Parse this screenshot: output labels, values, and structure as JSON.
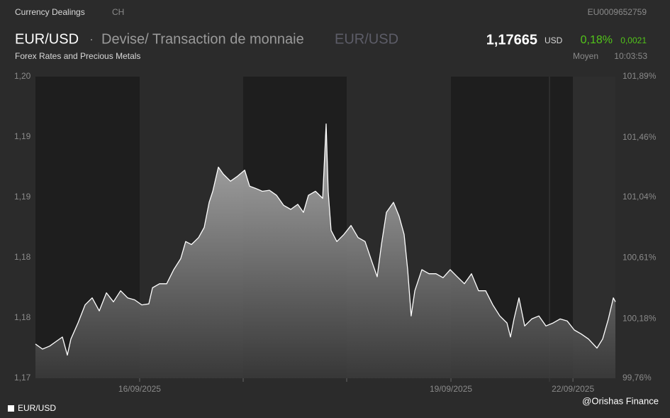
{
  "header": {
    "section": "Currency Dealings",
    "country": "CH",
    "isin": "EU0009652759",
    "symbol": "EUR/USD",
    "separator": "·",
    "description": "Devise/ Transaction de monnaie",
    "symbol_alt": "EUR/USD",
    "price": "1,17665",
    "currency": "USD",
    "change_pct": "0,18%",
    "change_abs": "0,0021",
    "subtitle": "Forex Rates and Precious Metals",
    "price_type": "Moyen",
    "time": "10:03:53"
  },
  "chart_data": {
    "type": "area",
    "x": [
      0,
      0.068,
      0.137,
      0.205,
      0.26,
      0.308,
      0.342,
      0.411,
      0.479,
      0.548,
      0.616,
      0.685,
      0.753,
      0.822,
      0.89,
      0.958,
      1.027,
      1.095,
      1.13,
      1.198,
      1.267,
      1.335,
      1.403,
      1.451,
      1.506,
      1.575,
      1.629,
      1.677,
      1.712,
      1.766,
      1.814,
      1.883,
      1.951,
      2.02,
      2.068,
      2.122,
      2.191,
      2.259,
      2.328,
      2.396,
      2.465,
      2.533,
      2.588,
      2.636,
      2.704,
      2.773,
      2.807,
      2.827,
      2.855,
      2.91,
      2.978,
      3.047,
      3.115,
      3.183,
      3.252,
      3.3,
      3.341,
      3.389,
      3.457,
      3.512,
      3.56,
      3.594,
      3.628,
      3.663,
      3.731,
      3.8,
      3.868,
      3.936,
      4.005,
      4.073,
      4.142,
      4.21,
      4.279,
      4.347,
      4.416,
      4.484,
      4.553,
      4.587,
      4.621,
      4.669,
      4.724,
      4.792,
      4.861,
      4.929,
      4.998,
      5.066,
      5.134,
      5.203,
      5.271,
      5.34,
      5.422,
      5.477,
      5.532,
      5.58,
      5.6
    ],
    "series": [
      {
        "name": "EUR/USD",
        "color": "#ffffff",
        "values": [
          1.1734,
          1.1729,
          1.1732,
          1.1737,
          1.1741,
          1.1723,
          1.1739,
          1.1755,
          1.1773,
          1.178,
          1.1767,
          1.1785,
          1.1776,
          1.1787,
          1.178,
          1.1778,
          1.1773,
          1.1774,
          1.179,
          1.1794,
          1.1794,
          1.1808,
          1.1819,
          1.1836,
          1.1833,
          1.184,
          1.185,
          1.1875,
          1.1886,
          1.191,
          1.1903,
          1.1896,
          1.1901,
          1.1907,
          1.1891,
          1.1889,
          1.1886,
          1.1887,
          1.1882,
          1.1872,
          1.1868,
          1.1873,
          1.1865,
          1.1882,
          1.1886,
          1.1879,
          1.1953,
          1.1886,
          1.1847,
          1.1836,
          1.1843,
          1.1852,
          1.184,
          1.1836,
          1.1815,
          1.1801,
          1.1833,
          1.1865,
          1.1875,
          1.1861,
          1.1843,
          1.1808,
          1.1762,
          1.1787,
          1.1808,
          1.1804,
          1.1804,
          1.18,
          1.1808,
          1.1801,
          1.1794,
          1.1804,
          1.1787,
          1.1787,
          1.1773,
          1.1762,
          1.1755,
          1.1741,
          1.1759,
          1.178,
          1.1752,
          1.1759,
          1.1762,
          1.1752,
          1.1755,
          1.1759,
          1.1757,
          1.1748,
          1.1744,
          1.1739,
          1.173,
          1.1739,
          1.1759,
          1.178,
          1.1776
        ]
      }
    ],
    "xlim": [
      0,
      5.6
    ],
    "xticks": [
      {
        "value": 1.006,
        "label": "16/09/2025"
      },
      {
        "value": 4.012,
        "label": "19/09/2025"
      },
      {
        "value": 5.19,
        "label": "22/09/2025"
      }
    ],
    "ylim": [
      1.17,
      1.2
    ],
    "yticks": [
      {
        "value": 1.17,
        "label": "1,17"
      },
      {
        "value": 1.176,
        "label": "1,18"
      },
      {
        "value": 1.182,
        "label": "1,18"
      },
      {
        "value": 1.188,
        "label": "1,19"
      },
      {
        "value": 1.194,
        "label": "1,19"
      },
      {
        "value": 1.2,
        "label": "1,20"
      }
    ],
    "y2lim": [
      99.76,
      101.89
    ],
    "y2ticks": [
      {
        "value": 99.76,
        "label": "99,76%"
      },
      {
        "value": 100.18,
        "label": "100,18%"
      },
      {
        "value": 100.61,
        "label": "100,61%"
      },
      {
        "value": 101.04,
        "label": "101,04%"
      },
      {
        "value": 101.46,
        "label": "101,46%"
      },
      {
        "value": 101.89,
        "label": "101,89%"
      }
    ]
  },
  "footer": {
    "credit": "@Orishas Finance"
  }
}
